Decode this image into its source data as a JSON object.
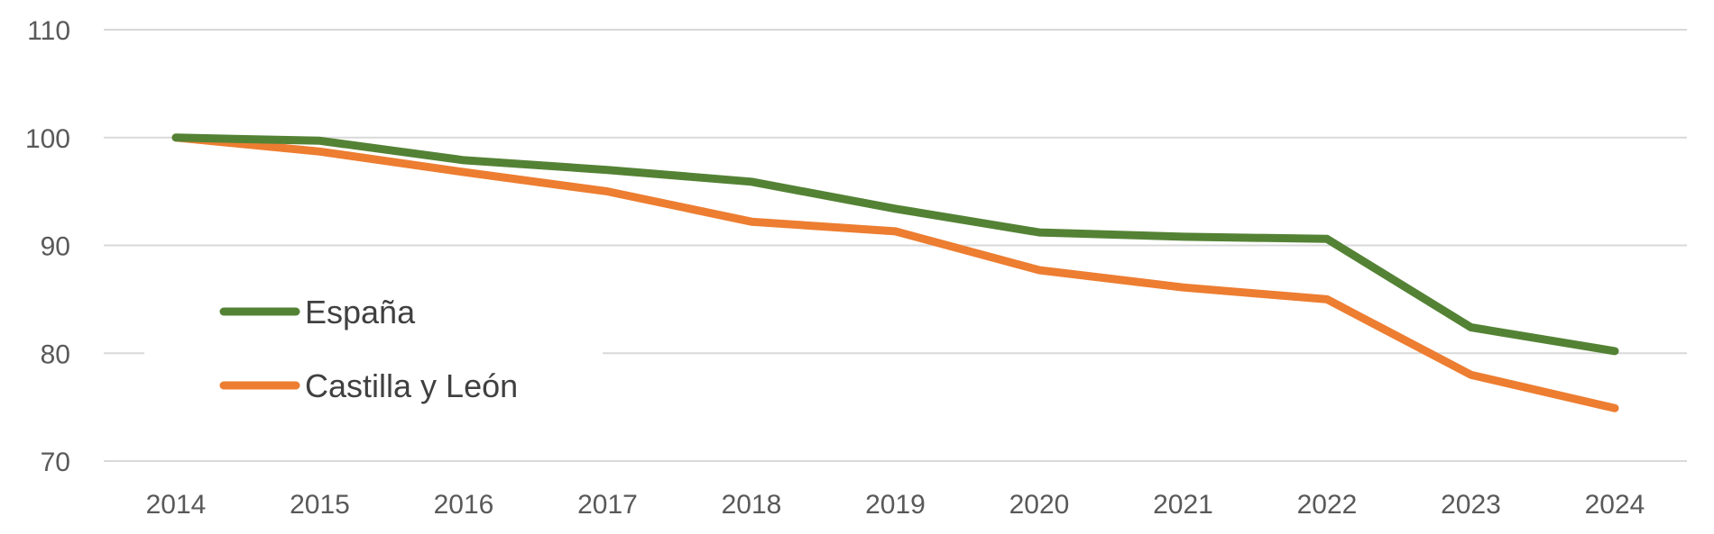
{
  "chart_data": {
    "type": "line",
    "title": "",
    "xlabel": "",
    "ylabel": "",
    "x": [
      "2014",
      "2015",
      "2016",
      "2017",
      "2018",
      "2019",
      "2020",
      "2021",
      "2022",
      "2023",
      "2024"
    ],
    "ylim": [
      70,
      110
    ],
    "yticks": [
      70,
      80,
      90,
      100,
      110
    ],
    "grid": true,
    "legend": "inside-bottom-left",
    "series": [
      {
        "name": "España",
        "color": "#548235",
        "values": [
          100,
          99.7,
          97.9,
          97.0,
          95.9,
          93.4,
          91.2,
          90.8,
          90.6,
          82.4,
          80.2
        ]
      },
      {
        "name": "Castilla y León",
        "color": "#ED7D31",
        "values": [
          100,
          98.7,
          96.8,
          95.0,
          92.2,
          91.3,
          87.7,
          86.1,
          85.0,
          78.0,
          74.9
        ]
      }
    ]
  }
}
